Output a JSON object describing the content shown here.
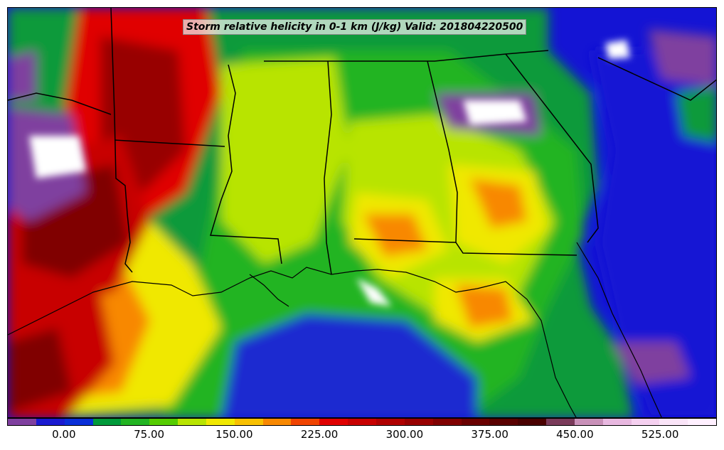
{
  "title": "Storm relative helicity in 0-1 km (J/kg) Valid: 201804220500",
  "colorbar": {
    "colors": [
      "#7f3f9f",
      "#1a1ad0",
      "#0a2fd8",
      "#009a3a",
      "#22b422",
      "#55cc00",
      "#b8e400",
      "#f0e800",
      "#f8c000",
      "#f88800",
      "#f04400",
      "#e00000",
      "#c80000",
      "#b00000",
      "#980000",
      "#800000",
      "#6a0000",
      "#5a0000",
      "#4a0000",
      "#7a3a5a",
      "#c890b8",
      "#e8b8e0",
      "#f5d0f0",
      "#fae4f8",
      "#fff0ff"
    ],
    "tick_labels": [
      "0.00",
      "75.00",
      "150.00",
      "225.00",
      "300.00",
      "375.00",
      "450.00",
      "525.00"
    ],
    "tick_values": [
      0,
      75,
      150,
      225,
      300,
      375,
      450,
      525
    ],
    "value_min": -50,
    "value_max": 575
  }
}
